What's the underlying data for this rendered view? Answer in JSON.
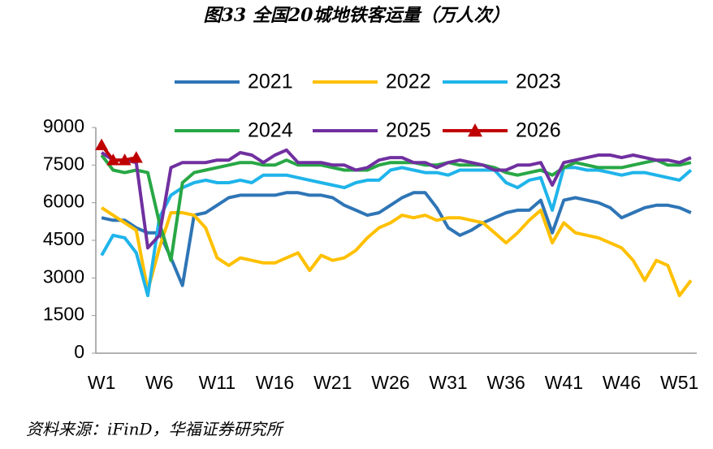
{
  "chart_data": {
    "type": "line",
    "title": "图33 全国20城地铁客运量（万人次）",
    "source": "资料来源：iFinD，华福证券研究所",
    "categories": [
      "W1",
      null,
      null,
      null,
      null,
      "W6",
      null,
      null,
      null,
      null,
      "W11",
      null,
      null,
      null,
      null,
      "W16",
      null,
      null,
      null,
      null,
      "W21",
      null,
      null,
      null,
      null,
      "W26",
      null,
      null,
      null,
      null,
      "W31",
      null,
      null,
      null,
      null,
      "W36",
      null,
      null,
      null,
      null,
      "W41",
      null,
      null,
      null,
      null,
      "W46",
      null,
      null,
      null,
      null,
      "W51",
      null
    ],
    "ylim": [
      0,
      9000
    ],
    "yticks": [
      0,
      1500,
      3000,
      4500,
      6000,
      7500,
      9000
    ],
    "grid": false,
    "legend": "top",
    "series": [
      {
        "name": "2021",
        "color": "#2e75b6",
        "values": [
          5400,
          5300,
          5300,
          5000,
          4800,
          4800,
          3800,
          2700,
          5500,
          5600,
          5900,
          6200,
          6300,
          6300,
          6300,
          6300,
          6400,
          6400,
          6300,
          6300,
          6200,
          5900,
          5700,
          5500,
          5600,
          5900,
          6200,
          6400,
          6400,
          5800,
          5000,
          4700,
          4900,
          5200,
          5400,
          5600,
          5700,
          5700,
          6100,
          4800,
          6100,
          6200,
          6100,
          6000,
          5800,
          5400,
          5600,
          5800,
          5900,
          5900,
          5800,
          5600
        ]
      },
      {
        "name": "2022",
        "color": "#ffc000",
        "values": [
          5800,
          5500,
          5200,
          4900,
          2500,
          4200,
          5600,
          5600,
          5500,
          5000,
          3800,
          3500,
          3800,
          3700,
          3600,
          3600,
          3800,
          4000,
          3300,
          3900,
          3700,
          3800,
          4100,
          4600,
          5000,
          5200,
          5500,
          5400,
          5500,
          5300,
          5400,
          5400,
          5300,
          5200,
          4800,
          4400,
          4800,
          5300,
          5700,
          4400,
          5200,
          4800,
          4700,
          4600,
          4400,
          4200,
          3700,
          2900,
          3700,
          3500,
          2300,
          2900
        ]
      },
      {
        "name": "2023",
        "color": "#1fb4ea",
        "values": [
          3900,
          4700,
          4600,
          4000,
          2300,
          5400,
          6300,
          6600,
          6800,
          6900,
          6800,
          6800,
          6900,
          6800,
          7100,
          7100,
          7100,
          7000,
          6900,
          6800,
          6700,
          6600,
          6800,
          6900,
          6900,
          7300,
          7400,
          7300,
          7200,
          7200,
          7100,
          7300,
          7300,
          7300,
          7300,
          6800,
          6600,
          6900,
          7000,
          5700,
          7400,
          7400,
          7300,
          7300,
          7200,
          7100,
          7200,
          7200,
          7100,
          7000,
          6900,
          7300
        ]
      },
      {
        "name": "2024",
        "color": "#28a745",
        "values": [
          7900,
          7300,
          7200,
          7300,
          7200,
          5200,
          3700,
          6800,
          7200,
          7300,
          7400,
          7500,
          7600,
          7600,
          7500,
          7500,
          7700,
          7500,
          7500,
          7500,
          7400,
          7300,
          7300,
          7300,
          7500,
          7600,
          7600,
          7600,
          7500,
          7500,
          7600,
          7500,
          7500,
          7500,
          7400,
          7200,
          7100,
          7200,
          7300,
          7100,
          7400,
          7600,
          7500,
          7400,
          7400,
          7400,
          7500,
          7600,
          7700,
          7500,
          7500,
          7600
        ]
      },
      {
        "name": "2025",
        "color": "#7030a0",
        "values": [
          8000,
          7700,
          7700,
          7600,
          4200,
          4700,
          7400,
          7600,
          7600,
          7600,
          7700,
          7700,
          8000,
          7900,
          7600,
          7900,
          8100,
          7600,
          7600,
          7600,
          7500,
          7500,
          7300,
          7400,
          7700,
          7800,
          7800,
          7600,
          7600,
          7400,
          7600,
          7700,
          7600,
          7500,
          7300,
          7300,
          7500,
          7500,
          7600,
          6700,
          7600,
          7700,
          7800,
          7900,
          7900,
          7800,
          7900,
          7800,
          7700,
          7700,
          7600,
          7800
        ]
      },
      {
        "name": "2026",
        "color": "#c00000",
        "marker": "triangle",
        "values": [
          8300,
          7700,
          7700,
          7800,
          null,
          null,
          null,
          null,
          null,
          null,
          null,
          null,
          null,
          null,
          null,
          null,
          null,
          null,
          null,
          null,
          null,
          null,
          null,
          null,
          null,
          null,
          null,
          null,
          null,
          null,
          null,
          null,
          null,
          null,
          null,
          null,
          null,
          null,
          null,
          null,
          null,
          null,
          null,
          null,
          null,
          null,
          null,
          null,
          null,
          null,
          null,
          null
        ]
      }
    ]
  }
}
